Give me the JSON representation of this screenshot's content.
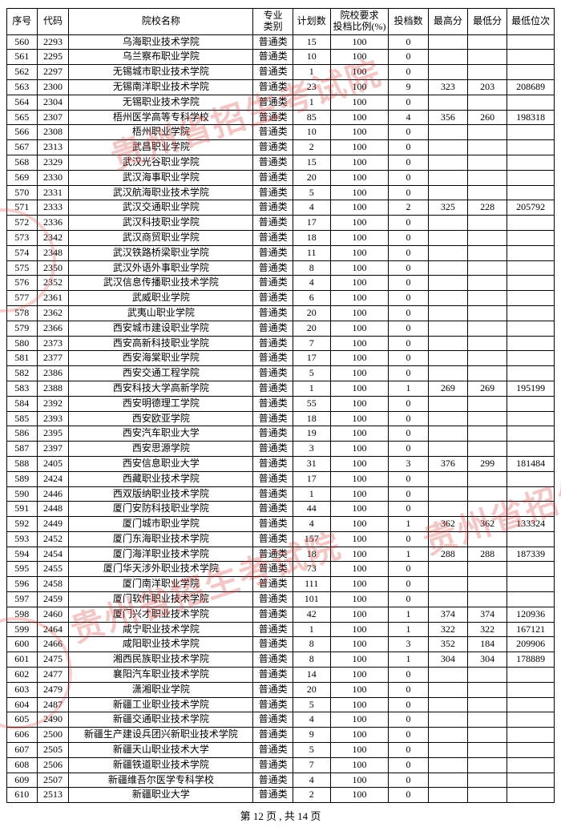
{
  "page": {
    "current": 12,
    "total": 14,
    "footer_tpl": "第 12 页 , 共 14 页"
  },
  "watermark": {
    "text": "贵州省招生考试院",
    "color": "#d83a3a",
    "opacity": 0.28
  },
  "table": {
    "columns": [
      {
        "key": "seq",
        "label": "序号"
      },
      {
        "key": "code",
        "label": "代码"
      },
      {
        "key": "name",
        "label": "院校名称"
      },
      {
        "key": "cat",
        "label": "专业\n类别"
      },
      {
        "key": "plan",
        "label": "计划数"
      },
      {
        "key": "ratio",
        "label": "院校要求\n投档比例(%)"
      },
      {
        "key": "cnt",
        "label": "投档数"
      },
      {
        "key": "hi",
        "label": "最高分"
      },
      {
        "key": "lo",
        "label": "最低分"
      },
      {
        "key": "rank",
        "label": "最低位次"
      }
    ],
    "catDefault": "普通类",
    "rows": [
      {
        "seq": 560,
        "code": "2293",
        "name": "乌海职业技术学院",
        "plan": 15,
        "ratio": 100,
        "cnt": 0
      },
      {
        "seq": 561,
        "code": "2295",
        "name": "乌兰察布职业学院",
        "plan": 10,
        "ratio": 100,
        "cnt": 0
      },
      {
        "seq": 562,
        "code": "2297",
        "name": "无锡城市职业技术学院",
        "plan": 1,
        "ratio": 100,
        "cnt": 0
      },
      {
        "seq": 563,
        "code": "2300",
        "name": "无锡南洋职业技术学院",
        "plan": 23,
        "ratio": 100,
        "cnt": 9,
        "hi": 323,
        "lo": 203,
        "rank": 208689
      },
      {
        "seq": 564,
        "code": "2304",
        "name": "无锡职业技术学院",
        "plan": 1,
        "ratio": 100,
        "cnt": 0
      },
      {
        "seq": 565,
        "code": "2307",
        "name": "梧州医学高等专科学校",
        "plan": 85,
        "ratio": 100,
        "cnt": 4,
        "hi": 356,
        "lo": 260,
        "rank": 198318
      },
      {
        "seq": 566,
        "code": "2308",
        "name": "梧州职业学院",
        "plan": 10,
        "ratio": 100,
        "cnt": 0
      },
      {
        "seq": 567,
        "code": "2313",
        "name": "武昌职业学院",
        "plan": 2,
        "ratio": 100,
        "cnt": 0
      },
      {
        "seq": 568,
        "code": "2329",
        "name": "武汉光谷职业学院",
        "plan": 15,
        "ratio": 100,
        "cnt": 0
      },
      {
        "seq": 569,
        "code": "2330",
        "name": "武汉海事职业学院",
        "plan": 20,
        "ratio": 100,
        "cnt": 0
      },
      {
        "seq": 570,
        "code": "2331",
        "name": "武汉航海职业技术学院",
        "plan": 5,
        "ratio": 100,
        "cnt": 0
      },
      {
        "seq": 571,
        "code": "2333",
        "name": "武汉交通职业学院",
        "plan": 4,
        "ratio": 100,
        "cnt": 2,
        "hi": 325,
        "lo": 228,
        "rank": 205792
      },
      {
        "seq": 572,
        "code": "2336",
        "name": "武汉科技职业学院",
        "plan": 17,
        "ratio": 100,
        "cnt": 0
      },
      {
        "seq": 573,
        "code": "2342",
        "name": "武汉商贸职业学院",
        "plan": 18,
        "ratio": 100,
        "cnt": 0
      },
      {
        "seq": 574,
        "code": "2348",
        "name": "武汉铁路桥梁职业学院",
        "plan": 11,
        "ratio": 100,
        "cnt": 0
      },
      {
        "seq": 575,
        "code": "2350",
        "name": "武汉外语外事职业学院",
        "plan": 8,
        "ratio": 100,
        "cnt": 0
      },
      {
        "seq": 576,
        "code": "2352",
        "name": "武汉信息传播职业技术学院",
        "plan": 4,
        "ratio": 100,
        "cnt": 0
      },
      {
        "seq": 577,
        "code": "2361",
        "name": "武威职业学院",
        "plan": 6,
        "ratio": 100,
        "cnt": 0
      },
      {
        "seq": 578,
        "code": "2362",
        "name": "武夷山职业学院",
        "plan": 20,
        "ratio": 100,
        "cnt": 0
      },
      {
        "seq": 579,
        "code": "2366",
        "name": "西安城市建设职业学院",
        "plan": 20,
        "ratio": 100,
        "cnt": 0
      },
      {
        "seq": 580,
        "code": "2373",
        "name": "西安高新科技职业学院",
        "plan": 7,
        "ratio": 100,
        "cnt": 0
      },
      {
        "seq": 581,
        "code": "2377",
        "name": "西安海棠职业学院",
        "plan": 17,
        "ratio": 100,
        "cnt": 0
      },
      {
        "seq": 582,
        "code": "2386",
        "name": "西安交通工程学院",
        "plan": 5,
        "ratio": 100,
        "cnt": 0
      },
      {
        "seq": 583,
        "code": "2388",
        "name": "西安科技大学高新学院",
        "plan": 1,
        "ratio": 100,
        "cnt": 1,
        "hi": 269,
        "lo": 269,
        "rank": 195199
      },
      {
        "seq": 584,
        "code": "2392",
        "name": "西安明德理工学院",
        "plan": 55,
        "ratio": 100,
        "cnt": 0
      },
      {
        "seq": 585,
        "code": "2393",
        "name": "西安欧亚学院",
        "plan": 18,
        "ratio": 100,
        "cnt": 0
      },
      {
        "seq": 586,
        "code": "2395",
        "name": "西安汽车职业大学",
        "plan": 19,
        "ratio": 100,
        "cnt": 0
      },
      {
        "seq": 587,
        "code": "2397",
        "name": "西安思源学院",
        "plan": 3,
        "ratio": 100,
        "cnt": 0
      },
      {
        "seq": 588,
        "code": "2405",
        "name": "西安信息职业大学",
        "plan": 31,
        "ratio": 100,
        "cnt": 3,
        "hi": 376,
        "lo": 299,
        "rank": 181484
      },
      {
        "seq": 589,
        "code": "2424",
        "name": "西藏职业技术学院",
        "plan": 17,
        "ratio": 100,
        "cnt": 0
      },
      {
        "seq": 590,
        "code": "2446",
        "name": "西双版纳职业技术学院",
        "plan": 1,
        "ratio": 100,
        "cnt": 0
      },
      {
        "seq": 591,
        "code": "2448",
        "name": "厦门安防科技职业学院",
        "plan": 44,
        "ratio": 100,
        "cnt": 0
      },
      {
        "seq": 592,
        "code": "2449",
        "name": "厦门城市职业学院",
        "plan": 4,
        "ratio": 100,
        "cnt": 1,
        "hi": 362,
        "lo": 362,
        "rank": 133324
      },
      {
        "seq": 593,
        "code": "2452",
        "name": "厦门东海职业技术学院",
        "plan": 157,
        "ratio": 100,
        "cnt": 0
      },
      {
        "seq": 594,
        "code": "2454",
        "name": "厦门海洋职业技术学院",
        "plan": 18,
        "ratio": 100,
        "cnt": 1,
        "hi": 288,
        "lo": 288,
        "rank": 187339
      },
      {
        "seq": 595,
        "code": "2455",
        "name": "厦门华天涉外职业技术学院",
        "plan": 73,
        "ratio": 100,
        "cnt": 0
      },
      {
        "seq": 596,
        "code": "2458",
        "name": "厦门南洋职业学院",
        "plan": 111,
        "ratio": 100,
        "cnt": 0
      },
      {
        "seq": 597,
        "code": "2459",
        "name": "厦门软件职业技术学院",
        "plan": 101,
        "ratio": 100,
        "cnt": 0
      },
      {
        "seq": 598,
        "code": "2460",
        "name": "厦门兴才职业技术学院",
        "plan": 42,
        "ratio": 100,
        "cnt": 1,
        "hi": 374,
        "lo": 374,
        "rank": 120936
      },
      {
        "seq": 599,
        "code": "2464",
        "name": "咸宁职业技术学院",
        "plan": 1,
        "ratio": 100,
        "cnt": 1,
        "hi": 322,
        "lo": 322,
        "rank": 167121
      },
      {
        "seq": 600,
        "code": "2466",
        "name": "咸阳职业技术学院",
        "plan": 8,
        "ratio": 100,
        "cnt": 3,
        "hi": 352,
        "lo": 184,
        "rank": 209906
      },
      {
        "seq": 601,
        "code": "2475",
        "name": "湘西民族职业技术学院",
        "plan": 8,
        "ratio": 100,
        "cnt": 1,
        "hi": 304,
        "lo": 304,
        "rank": 178889
      },
      {
        "seq": 602,
        "code": "2477",
        "name": "襄阳汽车职业技术学院",
        "plan": 14,
        "ratio": 100,
        "cnt": 0
      },
      {
        "seq": 603,
        "code": "2479",
        "name": "潇湘职业学院",
        "plan": 20,
        "ratio": 100,
        "cnt": 0
      },
      {
        "seq": 604,
        "code": "2487",
        "name": "新疆工业职业技术学院",
        "plan": 5,
        "ratio": 100,
        "cnt": 0
      },
      {
        "seq": 605,
        "code": "2490",
        "name": "新疆交通职业技术学院",
        "plan": 4,
        "ratio": 100,
        "cnt": 0
      },
      {
        "seq": 606,
        "code": "2500",
        "name": "新疆生产建设兵团兴新职业技术学院",
        "plan": 9,
        "ratio": 100,
        "cnt": 0
      },
      {
        "seq": 607,
        "code": "2505",
        "name": "新疆天山职业技术大学",
        "plan": 5,
        "ratio": 100,
        "cnt": 0
      },
      {
        "seq": 608,
        "code": "2506",
        "name": "新疆铁道职业技术学院",
        "plan": 7,
        "ratio": 100,
        "cnt": 0
      },
      {
        "seq": 609,
        "code": "2507",
        "name": "新疆维吾尔医学专科学校",
        "plan": 4,
        "ratio": 100,
        "cnt": 0
      },
      {
        "seq": 610,
        "code": "2513",
        "name": "新疆职业大学",
        "plan": 2,
        "ratio": 100,
        "cnt": 0
      }
    ]
  }
}
